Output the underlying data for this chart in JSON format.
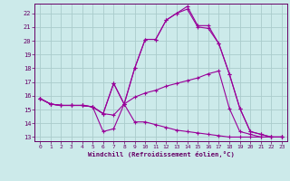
{
  "background_color": "#cceaea",
  "grid_color": "#aacccc",
  "line_color": "#990099",
  "spine_color": "#660066",
  "tick_color": "#660066",
  "xlabel": "Windchill (Refroidissement éolien,°C)",
  "xlim": [
    -0.5,
    23.5
  ],
  "ylim": [
    12.7,
    22.7
  ],
  "xticks": [
    0,
    1,
    2,
    3,
    4,
    5,
    6,
    7,
    8,
    9,
    10,
    11,
    12,
    13,
    14,
    15,
    16,
    17,
    18,
    19,
    20,
    21,
    22,
    23
  ],
  "yticks": [
    13,
    14,
    15,
    16,
    17,
    18,
    19,
    20,
    21,
    22
  ],
  "lines": [
    {
      "y": [
        15.8,
        15.4,
        15.3,
        15.3,
        15.3,
        15.2,
        13.4,
        13.6,
        15.4,
        14.1,
        14.1,
        13.9,
        13.7,
        13.5,
        13.4,
        13.3,
        13.2,
        13.1,
        13.0,
        13.0,
        13.0,
        13.0,
        13.0,
        13.0
      ]
    },
    {
      "y": [
        15.8,
        15.4,
        15.3,
        15.3,
        15.3,
        15.2,
        14.7,
        14.6,
        15.4,
        15.9,
        16.2,
        16.4,
        16.7,
        16.9,
        17.1,
        17.3,
        17.6,
        17.8,
        15.1,
        13.4,
        13.2,
        13.0,
        13.0,
        13.0
      ]
    },
    {
      "y": [
        15.8,
        15.4,
        15.3,
        15.3,
        15.3,
        15.2,
        14.7,
        16.9,
        15.4,
        18.0,
        20.1,
        20.1,
        21.5,
        22.0,
        22.3,
        21.0,
        20.9,
        19.8,
        17.6,
        15.1,
        13.4,
        13.2,
        13.0,
        13.0
      ]
    },
    {
      "y": [
        15.8,
        15.4,
        15.3,
        15.3,
        15.3,
        15.2,
        14.7,
        16.9,
        15.4,
        18.0,
        20.1,
        20.1,
        21.5,
        22.0,
        22.5,
        21.1,
        21.1,
        19.8,
        17.6,
        15.1,
        13.4,
        13.2,
        13.0,
        13.0
      ]
    }
  ]
}
